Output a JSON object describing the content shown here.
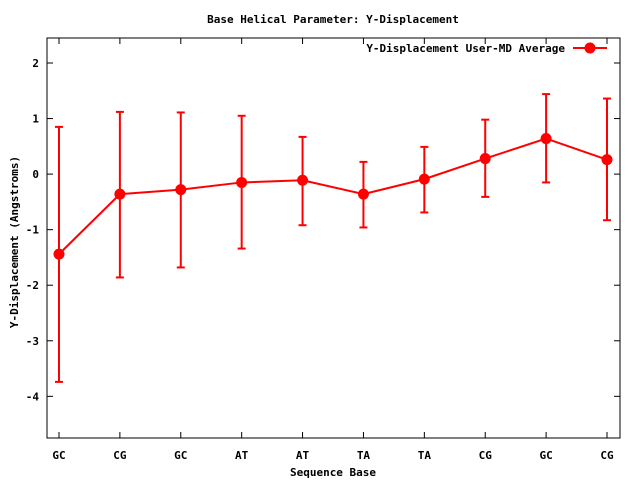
{
  "chart_data": {
    "type": "line",
    "title": "Base  Helical Parameter: Y-Displacement",
    "xlabel": "Sequence Base",
    "ylabel": "Y-Displacement (Angstroms)",
    "categories": [
      "GC",
      "CG",
      "GC",
      "AT",
      "AT",
      "TA",
      "TA",
      "CG",
      "GC",
      "CG"
    ],
    "ylim": [
      -4.75,
      2.45
    ],
    "yticks": [
      2,
      1,
      0,
      -1,
      -2,
      -3,
      -4
    ],
    "ytick_labels": [
      "2",
      "1",
      "0",
      "-1",
      "-2",
      "-3",
      "-4"
    ],
    "grid": false,
    "legend_position": "top-right",
    "series": [
      {
        "name": "Y-Displacement User-MD Average",
        "color": "#ff0000",
        "marker": "circle",
        "values": [
          -1.44,
          -0.36,
          -0.28,
          -0.15,
          -0.11,
          -0.36,
          -0.09,
          0.28,
          0.64,
          0.26
        ],
        "err_low": [
          -3.74,
          -1.86,
          -1.68,
          -1.34,
          -0.92,
          -0.96,
          -0.69,
          -0.41,
          -0.15,
          -0.83
        ],
        "err_high": [
          0.85,
          1.12,
          1.11,
          1.05,
          0.67,
          0.22,
          0.49,
          0.98,
          1.44,
          1.36
        ]
      }
    ]
  }
}
